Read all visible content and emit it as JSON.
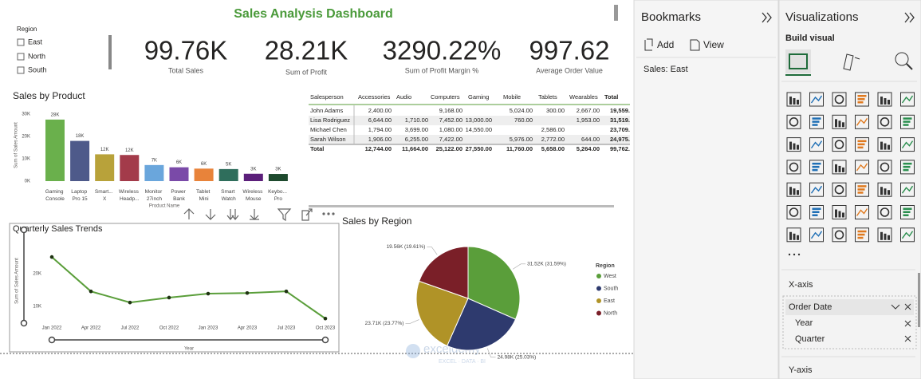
{
  "report": {
    "title": "Sales Analysis Dashboard",
    "slicer": {
      "title": "Region",
      "options": [
        "East",
        "North",
        "South"
      ]
    },
    "cards": [
      {
        "value": "99.76K",
        "label": "Total Sales"
      },
      {
        "value": "28.21K",
        "label": "Sum of Profit"
      },
      {
        "value": "3290.22%",
        "label": "Sum of Profit Margin %"
      },
      {
        "value": "997.62",
        "label": "Average Order Value"
      }
    ],
    "table": {
      "columns": [
        "Salesperson",
        "Accessories",
        "Audio",
        "Computers",
        "Gaming",
        "Mobile",
        "Tablets",
        "Wearables",
        "Total"
      ],
      "rows": [
        [
          "John Adams",
          "2,400.00",
          null,
          "9,168.00",
          null,
          "5,024.00",
          "300.00",
          "2,667.00",
          "19,559."
        ],
        [
          "Lisa Rodriguez",
          "6,644.00",
          "1,710.00",
          "7,452.00",
          "13,000.00",
          "760.00",
          null,
          "1,953.00",
          "31,519."
        ],
        [
          "Michael Chen",
          "1,794.00",
          "3,699.00",
          "1,080.00",
          "14,550.00",
          null,
          "2,586.00",
          null,
          "23,709."
        ],
        [
          "Sarah Wilson",
          "1,906.00",
          "6,255.00",
          "7,422.00",
          null,
          "5,976.00",
          "2,772.00",
          "644.00",
          "24,975."
        ],
        [
          "Total",
          "12,744.00",
          "11,664.00",
          "25,122.00",
          "27,550.00",
          "11,760.00",
          "5,658.00",
          "5,264.00",
          "99,762."
        ]
      ]
    },
    "watermark": {
      "name": "exceldemy",
      "tagline": "EXCEL · DATA · BI"
    }
  },
  "chart_data": [
    {
      "type": "bar",
      "title": "Sales by Product",
      "x_label": "Product Name",
      "y_label": "Sum of Sales Amount",
      "categories": [
        "Gaming Console",
        "Laptop Pro 15",
        "Smart... X",
        "Wireless Headp...",
        "Monitor 27inch",
        "Power Bank",
        "Tablet Mini",
        "Smart Watch",
        "Wireless Mouse",
        "Keybo... Pro"
      ],
      "values": [
        27550,
        18000,
        12000,
        11700,
        7200,
        6200,
        5600,
        5400,
        3300,
        3200
      ],
      "value_labels": [
        "28K",
        "18K",
        "12K",
        "12K",
        "7K",
        "6K",
        "6K",
        "5K",
        "3K",
        "3K"
      ],
      "colors": [
        "#6ab04c",
        "#4e5a8a",
        "#b8a23a",
        "#a33b4a",
        "#6aa6dc",
        "#7a4aa8",
        "#e8833a",
        "#2f6e5c",
        "#5b1f7a",
        "#1e4a2e"
      ],
      "ylim": [
        0,
        30000
      ],
      "yticks": [
        {
          "value": 0,
          "label": "0K"
        },
        {
          "value": 10000,
          "label": "10K"
        },
        {
          "value": 20000,
          "label": "20K"
        },
        {
          "value": 30000,
          "label": "30K"
        }
      ]
    },
    {
      "type": "line",
      "title": "Quarterly Sales Trends",
      "x_label": "Year",
      "y_label": "Sum of Sales Amount",
      "categories": [
        "Jan 2022",
        "Apr 2022",
        "Jul 2022",
        "Oct 2022",
        "Jan 2023",
        "Apr 2023",
        "Jul 2023",
        "Oct 2023"
      ],
      "values": [
        25100,
        14600,
        11200,
        12700,
        13900,
        14100,
        14600,
        6300
      ],
      "color": "#5a9e3a",
      "ylim": [
        4900,
        31700
      ],
      "yticks": [
        {
          "value": 10000,
          "label": "10K"
        },
        {
          "value": 20000,
          "label": "20K"
        }
      ]
    },
    {
      "type": "pie",
      "title": "Sales by Region",
      "legend_title": "Region",
      "categories": [
        "West",
        "South",
        "East",
        "North"
      ],
      "values": [
        31520,
        24980,
        23710,
        19560
      ],
      "value_labels": [
        "31.52K (31.59%)",
        "24.98K (25.03%)",
        "23.71K (23.77%)",
        "19.56K (19.61%)"
      ],
      "colors": [
        "#5a9e3a",
        "#2e3a6e",
        "#b09327",
        "#7a1f28"
      ]
    }
  ],
  "bookmarks": {
    "title": "Bookmarks",
    "add": "Add",
    "view": "View",
    "items": [
      "Sales: East"
    ]
  },
  "visualizations": {
    "title": "Visualizations",
    "subtitle": "Build visual",
    "x_axis": "X-axis",
    "fields": [
      "Order Date",
      "Year",
      "Quarter"
    ],
    "y_axis": "Y-axis"
  }
}
